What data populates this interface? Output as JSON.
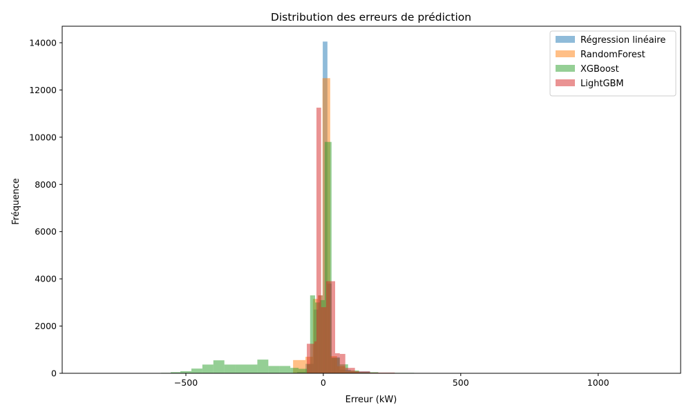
{
  "chart_data": {
    "type": "histogram",
    "title": "Distribution des erreurs de prédiction",
    "xlabel": "Erreur (kW)",
    "ylabel": "Fréquence",
    "xlim": [
      -950,
      1300
    ],
    "ylim": [
      0,
      14700
    ],
    "x_ticks": [
      -500,
      0,
      500,
      1000
    ],
    "x_tick_labels": [
      "−500",
      "0",
      "500",
      "1000"
    ],
    "y_ticks": [
      0,
      2000,
      4000,
      6000,
      8000,
      10000,
      12000,
      14000
    ],
    "y_tick_labels": [
      "0",
      "2000",
      "4000",
      "6000",
      "8000",
      "10000",
      "12000",
      "14000"
    ],
    "grid": false,
    "legend_position": "top-right",
    "series": [
      {
        "name": "Régression linéaire",
        "color": "#1f77b4",
        "bins": [
          {
            "x0": -95,
            "x1": -65,
            "y": 60
          },
          {
            "x0": -65,
            "x1": -35,
            "y": 400
          },
          {
            "x0": -35,
            "x1": -18,
            "y": 2700
          },
          {
            "x0": -18,
            "x1": -2,
            "y": 3300
          },
          {
            "x0": -2,
            "x1": 15,
            "y": 14050
          },
          {
            "x0": 15,
            "x1": 30,
            "y": 3800
          },
          {
            "x0": 30,
            "x1": 60,
            "y": 680
          },
          {
            "x0": 60,
            "x1": 100,
            "y": 150
          },
          {
            "x0": 100,
            "x1": 170,
            "y": 80
          }
        ]
      },
      {
        "name": "RandomForest",
        "color": "#ff7f0e",
        "bins": [
          {
            "x0": -110,
            "x1": -65,
            "y": 560
          },
          {
            "x0": -65,
            "x1": -38,
            "y": 700
          },
          {
            "x0": -38,
            "x1": -20,
            "y": 3150
          },
          {
            "x0": -20,
            "x1": -3,
            "y": 3300
          },
          {
            "x0": -3,
            "x1": 25,
            "y": 12500
          },
          {
            "x0": 25,
            "x1": 50,
            "y": 730
          },
          {
            "x0": 50,
            "x1": 80,
            "y": 300
          },
          {
            "x0": 80,
            "x1": 130,
            "y": 80
          }
        ]
      },
      {
        "name": "XGBoost",
        "color": "#2ca02c",
        "bins": [
          {
            "x0": -590,
            "x1": -555,
            "y": 20
          },
          {
            "x0": -555,
            "x1": -520,
            "y": 50
          },
          {
            "x0": -520,
            "x1": -480,
            "y": 90
          },
          {
            "x0": -480,
            "x1": -440,
            "y": 200
          },
          {
            "x0": -440,
            "x1": -400,
            "y": 370
          },
          {
            "x0": -400,
            "x1": -360,
            "y": 550
          },
          {
            "x0": -360,
            "x1": -320,
            "y": 370
          },
          {
            "x0": -320,
            "x1": -280,
            "y": 370
          },
          {
            "x0": -280,
            "x1": -240,
            "y": 370
          },
          {
            "x0": -240,
            "x1": -200,
            "y": 580
          },
          {
            "x0": -200,
            "x1": -160,
            "y": 310
          },
          {
            "x0": -160,
            "x1": -120,
            "y": 310
          },
          {
            "x0": -120,
            "x1": -90,
            "y": 230
          },
          {
            "x0": -90,
            "x1": -60,
            "y": 190
          },
          {
            "x0": -60,
            "x1": -48,
            "y": 390
          },
          {
            "x0": -48,
            "x1": -30,
            "y": 3300
          },
          {
            "x0": -30,
            "x1": -12,
            "y": 3000
          },
          {
            "x0": -12,
            "x1": 5,
            "y": 3100
          },
          {
            "x0": 5,
            "x1": 30,
            "y": 9800
          },
          {
            "x0": 30,
            "x1": 60,
            "y": 650
          },
          {
            "x0": 60,
            "x1": 90,
            "y": 380
          },
          {
            "x0": 90,
            "x1": 130,
            "y": 120
          },
          {
            "x0": 130,
            "x1": 200,
            "y": 50
          },
          {
            "x0": 200,
            "x1": 330,
            "y": 20
          }
        ]
      },
      {
        "name": "LightGBM",
        "color": "#d62728",
        "bins": [
          {
            "x0": -60,
            "x1": -33,
            "y": 1250
          },
          {
            "x0": -33,
            "x1": -25,
            "y": 1350
          },
          {
            "x0": -25,
            "x1": -8,
            "y": 11250
          },
          {
            "x0": -8,
            "x1": 10,
            "y": 2800
          },
          {
            "x0": 10,
            "x1": 43,
            "y": 3900
          },
          {
            "x0": 43,
            "x1": 60,
            "y": 850
          },
          {
            "x0": 60,
            "x1": 80,
            "y": 820
          },
          {
            "x0": 80,
            "x1": 115,
            "y": 230
          },
          {
            "x0": 115,
            "x1": 170,
            "y": 80
          },
          {
            "x0": 170,
            "x1": 260,
            "y": 30
          }
        ]
      }
    ]
  }
}
